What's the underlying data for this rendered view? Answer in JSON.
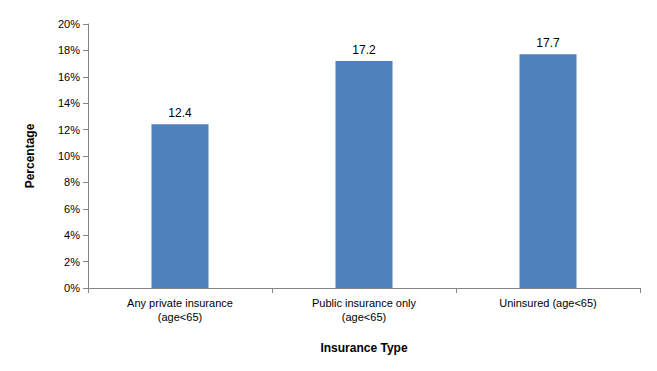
{
  "chart_data": {
    "type": "bar",
    "x_label": "Insurance Type",
    "y_label": "Percentage",
    "categories": [
      "Any private insurance\n(age<65)",
      "Public insurance only\n(age<65)",
      "Uninsured (age<65)"
    ],
    "values": [
      12.4,
      17.2,
      17.7
    ],
    "color": "#4f81bd",
    "ylim": [
      0,
      20
    ],
    "yticks": [
      {
        "value": 0,
        "label": "0%"
      },
      {
        "value": 2,
        "label": "2%"
      },
      {
        "value": 4,
        "label": "4%"
      },
      {
        "value": 6,
        "label": "6%"
      },
      {
        "value": 8,
        "label": "8%"
      },
      {
        "value": 10,
        "label": "10%"
      },
      {
        "value": 12,
        "label": "12%"
      },
      {
        "value": 14,
        "label": "14%"
      },
      {
        "value": 16,
        "label": "16%"
      },
      {
        "value": 18,
        "label": "18%"
      },
      {
        "value": 20,
        "label": "20%"
      }
    ],
    "grid": false,
    "data_labels": true
  }
}
